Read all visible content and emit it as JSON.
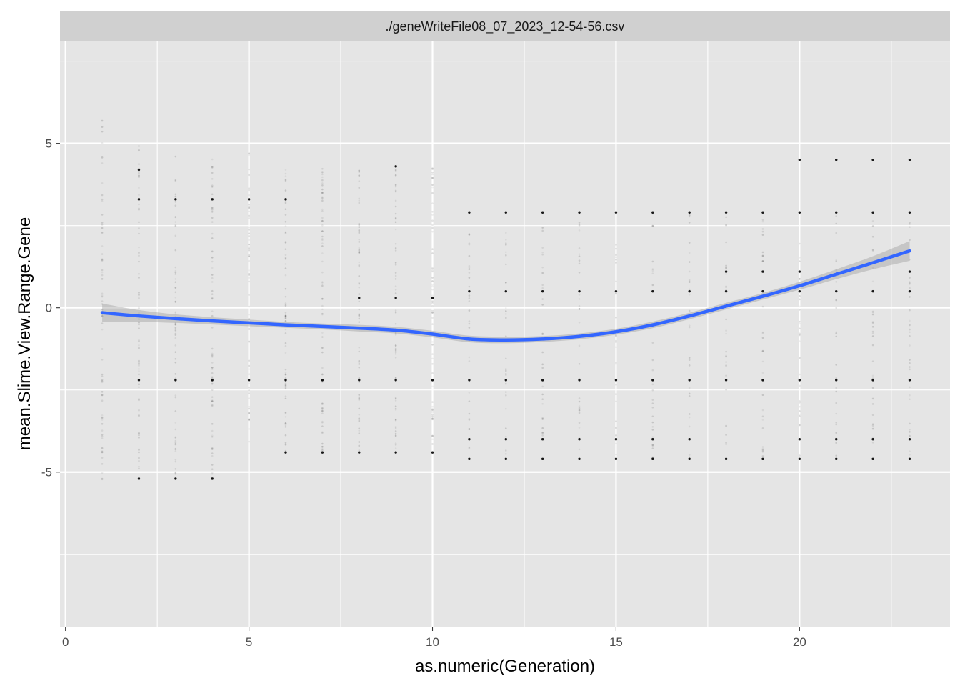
{
  "chart_data": {
    "type": "scatter",
    "facet_label": "./geneWriteFile08_07_2023_12-54-56.csv",
    "xlabel": "as.numeric(Generation)",
    "ylabel": "mean.Slime.View.Range.Gene",
    "xlim": [
      -0.15,
      24.1
    ],
    "ylim": [
      -9.7,
      8.1
    ],
    "x_ticks": [
      0,
      5,
      10,
      15,
      20
    ],
    "x_tick_labels": [
      "0",
      "5",
      "10",
      "15",
      "20"
    ],
    "y_ticks": [
      -5,
      0,
      5
    ],
    "y_tick_labels": [
      "-5",
      "0",
      "5"
    ],
    "grid": true,
    "colors": {
      "panel_bg": "#e5e5e5",
      "grid": "#ffffff",
      "strip_bg": "#d0d0d0",
      "point": "#000000",
      "smooth_line": "#3366ff",
      "ribbon": "#b3b3b3"
    },
    "point_columns": [
      {
        "x": 1,
        "dense": [
          -5.3,
          6.2
        ],
        "clusters": []
      },
      {
        "x": 2,
        "dense": [
          -5.2,
          5.2
        ],
        "clusters": [
          -5.2,
          -2.2,
          4.2,
          3.3
        ]
      },
      {
        "x": 3,
        "dense": [
          -5.2,
          5.0
        ],
        "clusters": [
          -2.2,
          -5.2,
          3.3
        ]
      },
      {
        "x": 4,
        "dense": [
          -5.2,
          4.6
        ],
        "clusters": [
          -2.2,
          -5.2,
          3.3
        ]
      },
      {
        "x": 5,
        "dense": [
          -4.3,
          4.9
        ],
        "clusters": [
          -2.2,
          3.3
        ]
      },
      {
        "x": 6,
        "dense": [
          -4.4,
          4.3
        ],
        "clusters": [
          -2.2,
          -4.4,
          3.3
        ]
      },
      {
        "x": 7,
        "dense": [
          -4.4,
          4.3
        ],
        "clusters": [
          -2.2,
          -4.4
        ]
      },
      {
        "x": 8,
        "dense": [
          -4.4,
          4.3
        ],
        "clusters": [
          -2.2,
          -4.4,
          0.3
        ]
      },
      {
        "x": 9,
        "dense": [
          -4.4,
          4.3
        ],
        "clusters": [
          -2.2,
          -4.4,
          0.3,
          4.3
        ]
      },
      {
        "x": 10,
        "dense": [
          -4.4,
          4.3
        ],
        "clusters": [
          -2.2,
          -4.4,
          0.3
        ]
      },
      {
        "x": 11,
        "dense": [
          -4.6,
          2.9
        ],
        "clusters": [
          -2.2,
          -4.6,
          -4.0,
          2.9,
          0.5
        ]
      },
      {
        "x": 12,
        "dense": [
          -4.6,
          2.9
        ],
        "clusters": [
          -2.2,
          -4.6,
          -4.0,
          2.9,
          0.5
        ]
      },
      {
        "x": 13,
        "dense": [
          -4.6,
          2.9
        ],
        "clusters": [
          -2.2,
          -4.6,
          -4.0,
          2.9,
          0.5
        ]
      },
      {
        "x": 14,
        "dense": [
          -4.6,
          2.9
        ],
        "clusters": [
          -2.2,
          -4.6,
          -4.0,
          2.9,
          0.5
        ]
      },
      {
        "x": 15,
        "dense": [
          -4.6,
          2.9
        ],
        "clusters": [
          -2.2,
          -4.6,
          -4.0,
          2.9,
          0.5
        ]
      },
      {
        "x": 16,
        "dense": [
          -4.6,
          2.9
        ],
        "clusters": [
          -2.2,
          -4.6,
          -4.0,
          2.9,
          0.5
        ]
      },
      {
        "x": 17,
        "dense": [
          -4.6,
          2.9
        ],
        "clusters": [
          -2.2,
          -4.6,
          -4.0,
          2.9,
          0.5
        ]
      },
      {
        "x": 18,
        "dense": [
          -4.6,
          2.9
        ],
        "clusters": [
          -2.2,
          -4.6,
          2.9,
          0.5,
          1.1
        ]
      },
      {
        "x": 19,
        "dense": [
          -4.6,
          2.9
        ],
        "clusters": [
          -2.2,
          -4.6,
          2.9,
          0.5,
          1.1
        ]
      },
      {
        "x": 20,
        "dense": [
          -4.6,
          2.9
        ],
        "clusters": [
          -2.2,
          -4.6,
          -4.0,
          2.9,
          0.5,
          1.1,
          4.5
        ]
      },
      {
        "x": 21,
        "dense": [
          -4.6,
          2.9
        ],
        "clusters": [
          -2.2,
          -4.6,
          -4.0,
          2.9,
          0.5,
          4.5
        ]
      },
      {
        "x": 22,
        "dense": [
          -4.6,
          2.9
        ],
        "clusters": [
          -2.2,
          -4.6,
          -4.0,
          2.9,
          0.5,
          4.5
        ]
      },
      {
        "x": 23,
        "dense": [
          -4.6,
          2.9
        ],
        "clusters": [
          -2.2,
          -4.6,
          -4.0,
          2.9,
          0.5,
          1.1,
          4.5
        ]
      }
    ],
    "smooth_series": {
      "x": [
        1,
        2,
        3,
        4,
        5,
        6,
        7,
        8,
        9,
        10,
        11,
        12,
        13,
        14,
        15,
        16,
        17,
        18,
        19,
        20,
        21,
        22,
        23
      ],
      "y": [
        -0.15,
        -0.25,
        -0.33,
        -0.4,
        -0.46,
        -0.52,
        -0.57,
        -0.62,
        -0.68,
        -0.8,
        -0.95,
        -0.98,
        -0.95,
        -0.87,
        -0.73,
        -0.52,
        -0.25,
        0.05,
        0.35,
        0.67,
        1.02,
        1.37,
        1.73
      ],
      "ribbon_half_width": [
        0.28,
        0.18,
        0.13,
        0.11,
        0.1,
        0.09,
        0.09,
        0.1,
        0.1,
        0.1,
        0.1,
        0.1,
        0.09,
        0.09,
        0.09,
        0.1,
        0.1,
        0.1,
        0.1,
        0.12,
        0.15,
        0.2,
        0.3
      ]
    }
  }
}
